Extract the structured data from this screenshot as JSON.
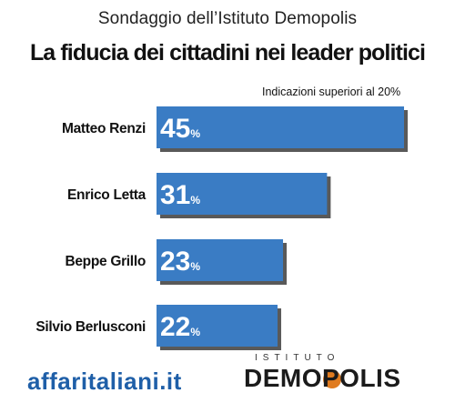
{
  "header": {
    "supertitle": "Sondaggio dell’Istituto Demopolis",
    "title": "La fiducia dei cittadini nei leader politici",
    "note": "Indicazioni superiori al 20%"
  },
  "footer": {
    "source": "affaritaliani.it",
    "logo_small": "ISTITUTO",
    "logo_big": "DEMOPOLIS"
  },
  "colors": {
    "bar": "#3a7cc4",
    "bar_shadow": "#222222",
    "label_text": "#ffffff",
    "category_text": "#111111"
  },
  "chart_data": {
    "type": "bar",
    "orientation": "horizontal",
    "categories": [
      "Matteo Renzi",
      "Enrico Letta",
      "Beppe Grillo",
      "Silvio Berlusconi"
    ],
    "values": [
      45,
      31,
      23,
      22
    ],
    "value_suffix": "%",
    "title": "La fiducia dei cittadini nei leader politici",
    "xlabel": "",
    "ylabel": "",
    "xlim": [
      0,
      45
    ]
  }
}
